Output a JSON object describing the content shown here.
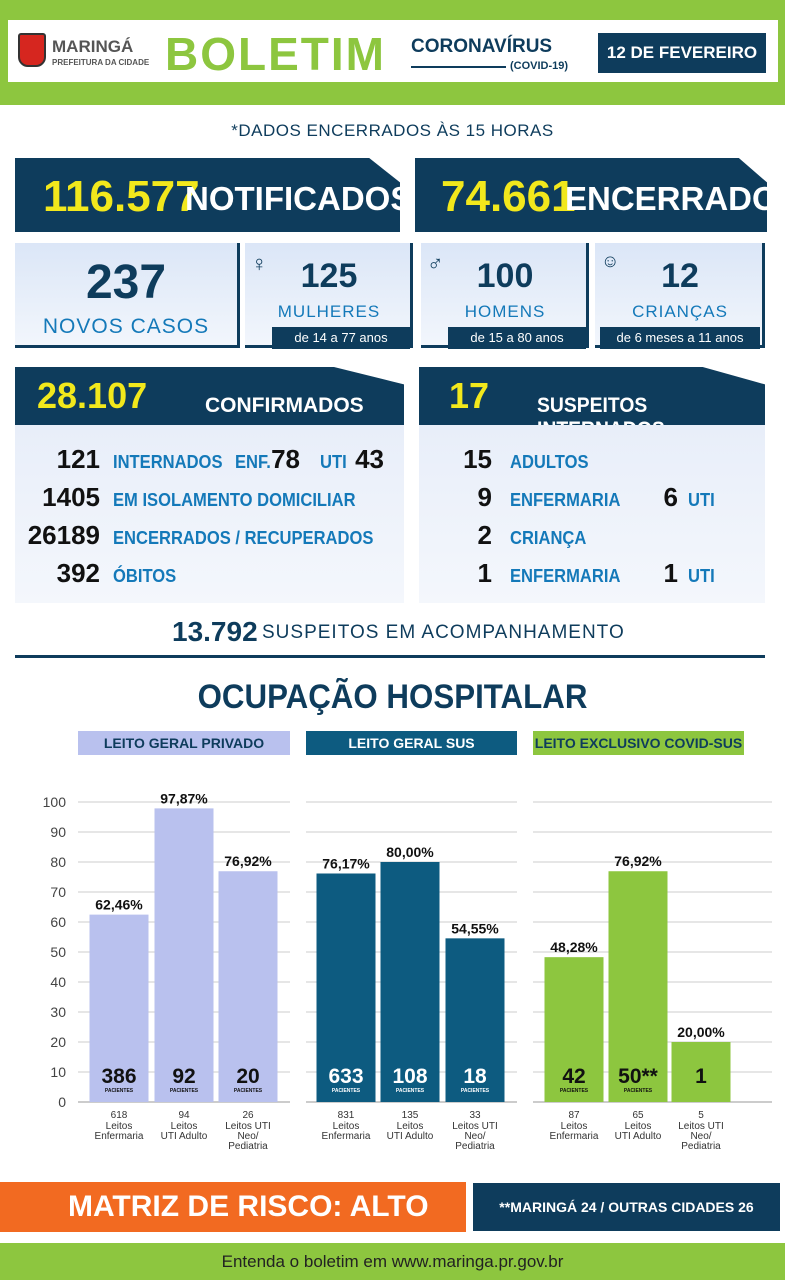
{
  "header": {
    "brand": "MARINGÁ",
    "brand_sub": "PREFEITURA DA CIDADE",
    "title": "BOLETIM",
    "subtitle": "CORONAVÍRUS",
    "subtitle_sub": "(COVID-19)",
    "date": "12 DE FEVEREIRO"
  },
  "note": "*DADOS ENCERRADOS ÀS 15 HORAS",
  "totals": {
    "notificados_num": "116.577",
    "notificados_label": "NOTIFICADOS",
    "encerrados_num": "74.661",
    "encerrados_label": "ENCERRADOS"
  },
  "cases": {
    "novos_num": "237",
    "novos_label": "NOVOS CASOS",
    "mulheres_num": "125",
    "mulheres_label": "MULHERES",
    "mulheres_range": "de 14 a 77 anos",
    "homens_num": "100",
    "homens_label": "HOMENS",
    "homens_range": "de 15 a 80 anos",
    "criancas_num": "12",
    "criancas_label": "CRIANÇAS",
    "criancas_range": "de 6 meses a 11 anos"
  },
  "confirmados": {
    "num": "28.107",
    "label": "CONFIRMADOS",
    "internados_num": "121",
    "internados_label": "INTERNADOS",
    "enf_label": "ENF.",
    "enf_num": "78",
    "uti_label": "UTI",
    "uti_num": "43",
    "isolamento_num": "1405",
    "isolamento_label": "EM ISOLAMENTO DOMICILIAR",
    "recuperados_num": "26189",
    "recuperados_label": "ENCERRADOS / RECUPERADOS",
    "obitos_num": "392",
    "obitos_label": "ÓBITOS"
  },
  "suspeitos": {
    "num": "17",
    "label": "SUSPEITOS INTERNADOS",
    "adultos_num": "15",
    "adultos_label": "ADULTOS",
    "adultos_enf_num": "9",
    "adultos_enf_label": "ENFERMARIA",
    "adultos_uti_num": "6",
    "adultos_uti_label": "UTI",
    "crianca_num": "2",
    "crianca_label": "CRIANÇA",
    "crianca_enf_num": "1",
    "crianca_enf_label": "ENFERMARIA",
    "crianca_uti_num": "1",
    "crianca_uti_label": "UTI"
  },
  "acompanhamento": {
    "num": "13.792",
    "label": "SUSPEITOS EM ACOMPANHAMENTO"
  },
  "section_title": "OCUPAÇÃO HOSPITALAR",
  "groups": [
    {
      "name": "LEITO GERAL PRIVADO",
      "color": "#b9c1ee",
      "text_color": "#0e3c5c"
    },
    {
      "name": "LEITO GERAL SUS",
      "color": "#0d5b80",
      "text_color": "#ffffff"
    },
    {
      "name": "LEITO EXCLUSIVO COVID-SUS",
      "color": "#8dc63f",
      "text_color": "#0e3c5c"
    }
  ],
  "chart_data": {
    "type": "bar",
    "ylim": [
      0,
      100
    ],
    "yticks": [
      "0",
      "10",
      "20",
      "30",
      "40",
      "50",
      "60",
      "70",
      "80",
      "90",
      "100"
    ],
    "pacientes_label": "PACIENTES",
    "bars": [
      {
        "group": 0,
        "value": 62.46,
        "label": "62,46%",
        "pacientes": "386",
        "show_pac": true,
        "leitos": "618",
        "cap": [
          "Leitos",
          "Enfermaria"
        ]
      },
      {
        "group": 0,
        "value": 97.87,
        "label": "97,87%",
        "pacientes": "92",
        "show_pac": true,
        "leitos": "94",
        "cap": [
          "Leitos",
          "UTI Adulto"
        ]
      },
      {
        "group": 0,
        "value": 76.92,
        "label": "76,92%",
        "pacientes": "20",
        "show_pac": true,
        "leitos": "26",
        "cap": [
          "Leitos UTI",
          "Neo/",
          "Pediatria"
        ]
      },
      {
        "group": 1,
        "value": 76.17,
        "label": "76,17%",
        "pacientes": "633",
        "show_pac": true,
        "leitos": "831",
        "cap": [
          "Leitos",
          "Enfermaria"
        ]
      },
      {
        "group": 1,
        "value": 80.0,
        "label": "80,00%",
        "pacientes": "108",
        "show_pac": true,
        "leitos": "135",
        "cap": [
          "Leitos",
          "UTI Adulto"
        ]
      },
      {
        "group": 1,
        "value": 54.55,
        "label": "54,55%",
        "pacientes": "18",
        "show_pac": true,
        "leitos": "33",
        "cap": [
          "Leitos UTI",
          "Neo/",
          "Pediatria"
        ]
      },
      {
        "group": 2,
        "value": 48.28,
        "label": "48,28%",
        "pacientes": "42",
        "show_pac": true,
        "leitos": "87",
        "cap": [
          "Leitos",
          "Enfermaria"
        ]
      },
      {
        "group": 2,
        "value": 76.92,
        "label": "76,92%",
        "pacientes": "50**",
        "show_pac": true,
        "leitos": "65",
        "cap": [
          "Leitos",
          "UTI Adulto"
        ]
      },
      {
        "group": 2,
        "value": 20.0,
        "label": "20,00%",
        "pacientes": "1",
        "show_pac": false,
        "leitos": "5",
        "cap": [
          "Leitos UTI",
          "Neo/",
          "Pediatria"
        ]
      }
    ]
  },
  "footer": {
    "risk": "MATRIZ DE RISCO: ALTO",
    "cities": "**MARINGÁ 24 / OUTRAS CIDADES 26",
    "link": "Entenda o boletim em www.maringa.pr.gov.br"
  }
}
